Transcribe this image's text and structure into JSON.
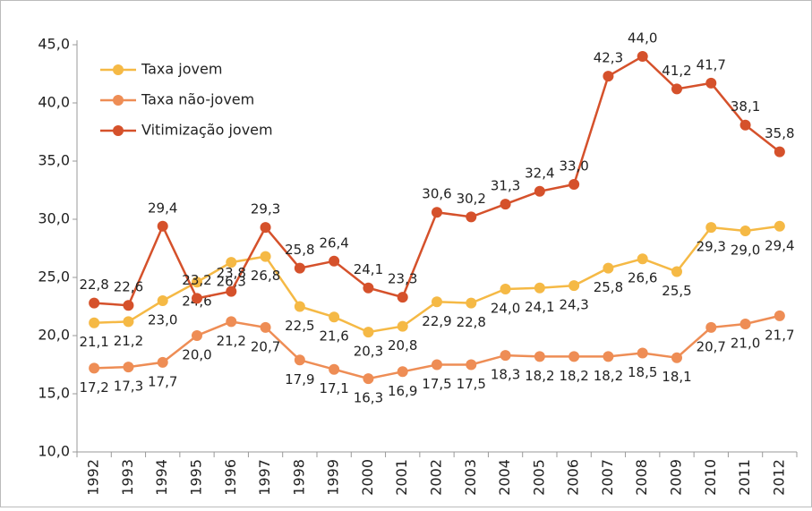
{
  "chart_data": {
    "type": "line",
    "categories": [
      "1992",
      "1993",
      "1994",
      "1995",
      "1996",
      "1997",
      "1998",
      "1999",
      "2000",
      "2001",
      "2002",
      "2003",
      "2004",
      "2005",
      "2006",
      "2007",
      "2008",
      "2009",
      "2010",
      "2011",
      "2012"
    ],
    "series": [
      {
        "name": "Taxa jovem",
        "color": "#f5b945",
        "values": [
          21.1,
          21.2,
          23.0,
          24.6,
          26.3,
          26.8,
          22.5,
          21.6,
          20.3,
          20.8,
          22.9,
          22.8,
          24.0,
          24.1,
          24.3,
          25.8,
          26.6,
          25.5,
          29.3,
          29.0,
          29.4
        ],
        "value_labels": [
          "21,1",
          "21,2",
          "23,0",
          "24,6",
          "26,3",
          "26,8",
          "22,5",
          "21,6",
          "20,3",
          "20,8",
          "22,9",
          "22,8",
          "24,0",
          "24,1",
          "24,3",
          "25,8",
          "26,6",
          "25,5",
          "29,3",
          "29,0",
          "29,4"
        ]
      },
      {
        "name": "Taxa não-jovem",
        "color": "#ee8d55",
        "values": [
          17.2,
          17.3,
          17.7,
          20.0,
          21.2,
          20.7,
          17.9,
          17.1,
          16.3,
          16.9,
          17.5,
          17.5,
          18.3,
          18.2,
          18.2,
          18.2,
          18.5,
          18.1,
          20.7,
          21.0,
          21.7
        ],
        "value_labels": [
          "17,2",
          "17,3",
          "17,7",
          "20,0",
          "21,2",
          "20,7",
          "17,9",
          "17,1",
          "16,3",
          "16,9",
          "17,5",
          "17,5",
          "18,3",
          "18,2",
          "18,2",
          "18,2",
          "18,5",
          "18,1",
          "20,7",
          "21,0",
          "21,7"
        ]
      },
      {
        "name": "Vitimização jovem",
        "color": "#d5512b",
        "values": [
          22.8,
          22.6,
          29.4,
          23.2,
          23.8,
          29.3,
          25.8,
          26.4,
          24.1,
          23.3,
          30.6,
          30.2,
          31.3,
          32.4,
          33.0,
          42.3,
          44.0,
          41.2,
          41.7,
          38.1,
          35.8
        ],
        "value_labels": [
          "22,8",
          "22,6",
          "29,4",
          "23,2",
          "23,8",
          "29,3",
          "25,8",
          "26,4",
          "24,1",
          "23,3",
          "30,6",
          "30,2",
          "31,3",
          "32,4",
          "33,0",
          "42,3",
          "44,0",
          "41,2",
          "41,7",
          "38,1",
          "35,8"
        ]
      }
    ],
    "ylim": [
      10,
      45
    ],
    "yticks": [
      {
        "value": 10,
        "label": "10,0"
      },
      {
        "value": 15,
        "label": "15,0"
      },
      {
        "value": 20,
        "label": "20,0"
      },
      {
        "value": 25,
        "label": "25,0"
      },
      {
        "value": 30,
        "label": "30,0"
      },
      {
        "value": 35,
        "label": "35,0"
      },
      {
        "value": 40,
        "label": "40,0"
      },
      {
        "value": 45,
        "label": "45,0"
      }
    ],
    "legend": "top-left"
  }
}
